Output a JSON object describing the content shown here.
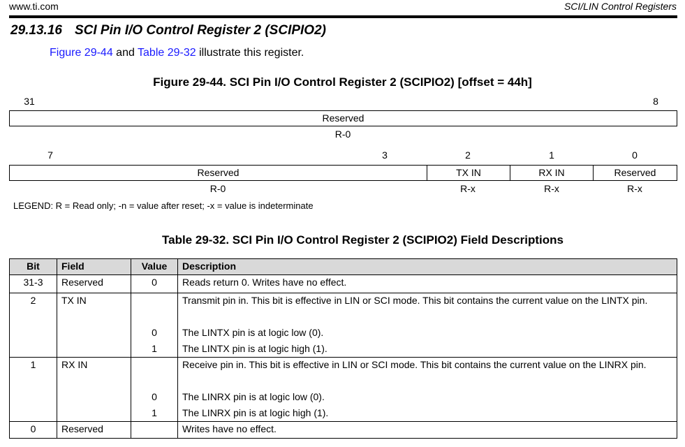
{
  "header": {
    "site": "www.ti.com",
    "chapter": "SCI/LIN Control Registers"
  },
  "section": {
    "number": "29.13.16",
    "title": "SCI Pin I/O Control Register 2 (SCIPIO2)"
  },
  "intro": {
    "figure_link": "Figure 29-44",
    "and": " and ",
    "table_link": "Table 29-32",
    "rest": " illustrate this register."
  },
  "figure": {
    "caption": "Figure 29-44. SCI Pin I/O Control Register 2 (SCIPIO2) [offset = 44h]",
    "row1": {
      "bit_hi": "31",
      "bit_lo": "8",
      "field": "Reserved",
      "access": "R-0"
    },
    "row2": {
      "bits": [
        "7",
        "3",
        "2",
        "1",
        "0"
      ],
      "fields": [
        "Reserved",
        "TX IN",
        "RX IN",
        "Reserved"
      ],
      "access": [
        "R-0",
        "R-x",
        "R-x",
        "R-x"
      ]
    },
    "legend": "LEGEND: R = Read only; -n = value after reset; -x = value is indeterminate"
  },
  "table": {
    "caption": "Table 29-32. SCI Pin I/O Control Register 2 (SCIPIO2) Field Descriptions",
    "headers": [
      "Bit",
      "Field",
      "Value",
      "Description"
    ],
    "rows": [
      {
        "bit": "31-3",
        "field": "Reserved",
        "value": "0",
        "desc": "Reads return 0. Writes have no effect."
      },
      {
        "bit": "2",
        "field": "TX IN",
        "desc": "Transmit pin in. This bit is effective in LIN or SCI mode. This bit contains the current value on the LINTX pin.",
        "values": [
          {
            "value": "0",
            "desc": "The LINTX pin is at logic low (0)."
          },
          {
            "value": "1",
            "desc": "The LINTX pin is at logic high (1)."
          }
        ]
      },
      {
        "bit": "1",
        "field": "RX IN",
        "desc": "Receive pin in. This bit is effective in LIN or SCI mode. This bit contains the current value on the LINRX pin.",
        "values": [
          {
            "value": "0",
            "desc": "The LINRX pin is at logic low (0)."
          },
          {
            "value": "1",
            "desc": "The LINRX pin is at logic high (1)."
          }
        ]
      },
      {
        "bit": "0",
        "field": "Reserved",
        "value": "",
        "desc": "Writes have no effect."
      }
    ]
  }
}
